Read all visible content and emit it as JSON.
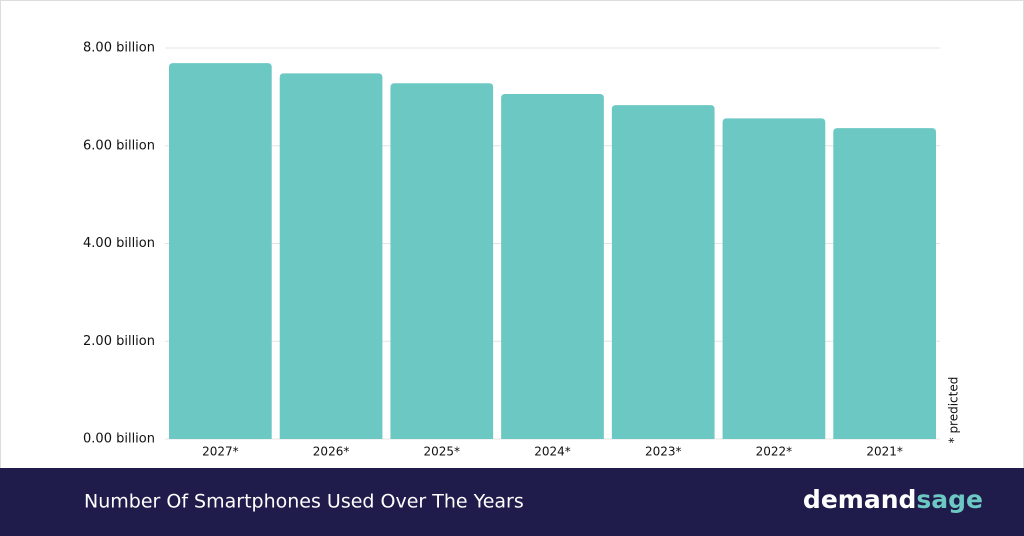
{
  "chart_data": {
    "type": "bar",
    "title": "Number Of Smartphones Used Over The Years",
    "brand": [
      "demand",
      "sage"
    ],
    "annotation": "* predicted",
    "categories": [
      "2027*",
      "2026*",
      "2025*",
      "2024*",
      "2023*",
      "2022*",
      "2021*"
    ],
    "values": [
      7.69,
      7.48,
      7.28,
      7.06,
      6.83,
      6.56,
      6.36
    ],
    "color": "#6cc8c3",
    "ylim": [
      0,
      8
    ],
    "yticks": [
      {
        "value": 0,
        "label": "0.00 billion"
      },
      {
        "value": 2,
        "label": "2.00 billion"
      },
      {
        "value": 4,
        "label": "4.00 billion"
      },
      {
        "value": 6,
        "label": "6.00 billion"
      },
      {
        "value": 8,
        "label": "8.00 billion"
      }
    ],
    "grid": true
  }
}
